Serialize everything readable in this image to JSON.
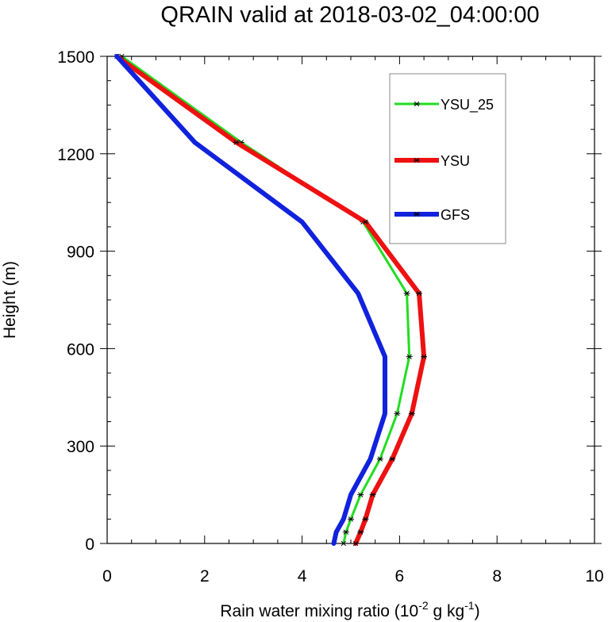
{
  "chart_data": {
    "type": "line",
    "title": "QRAIN valid at 2018-03-02_04:00:00",
    "xlabel_main": "Rain water mixing ratio (10",
    "xlabel_exp1": "-2",
    "xlabel_mid": " g kg",
    "xlabel_exp2": "-1",
    "xlabel_end": ")",
    "ylabel": "Height (m)",
    "xlim": [
      0,
      10
    ],
    "ylim": [
      0,
      1500
    ],
    "x_ticks": [
      "0",
      "2",
      "4",
      "6",
      "8",
      "10"
    ],
    "y_ticks": [
      "0",
      "300",
      "600",
      "900",
      "1200",
      "1500"
    ],
    "legend_position": "top-right",
    "series": [
      {
        "name": "YSU_25",
        "color": "#22dd22",
        "markers": true,
        "points": [
          [
            4.85,
            0
          ],
          [
            4.9,
            35
          ],
          [
            5.0,
            75
          ],
          [
            5.2,
            150
          ],
          [
            5.6,
            260
          ],
          [
            5.95,
            400
          ],
          [
            6.2,
            575
          ],
          [
            6.15,
            770
          ],
          [
            5.25,
            990
          ],
          [
            2.75,
            1235
          ],
          [
            0.3,
            1500
          ]
        ]
      },
      {
        "name": "YSU",
        "color": "#ee1111",
        "markers": true,
        "points": [
          [
            5.1,
            0
          ],
          [
            5.2,
            35
          ],
          [
            5.3,
            75
          ],
          [
            5.45,
            150
          ],
          [
            5.85,
            260
          ],
          [
            6.25,
            400
          ],
          [
            6.5,
            575
          ],
          [
            6.4,
            770
          ],
          [
            5.3,
            990
          ],
          [
            2.65,
            1235
          ],
          [
            0.2,
            1500
          ]
        ]
      },
      {
        "name": "GFS",
        "color": "#1122dd",
        "markers": false,
        "points": [
          [
            4.65,
            0
          ],
          [
            4.7,
            35
          ],
          [
            4.85,
            75
          ],
          [
            5.0,
            150
          ],
          [
            5.4,
            260
          ],
          [
            5.7,
            400
          ],
          [
            5.7,
            575
          ],
          [
            5.15,
            770
          ],
          [
            4.0,
            990
          ],
          [
            1.8,
            1235
          ],
          [
            0.2,
            1500
          ]
        ]
      }
    ]
  }
}
